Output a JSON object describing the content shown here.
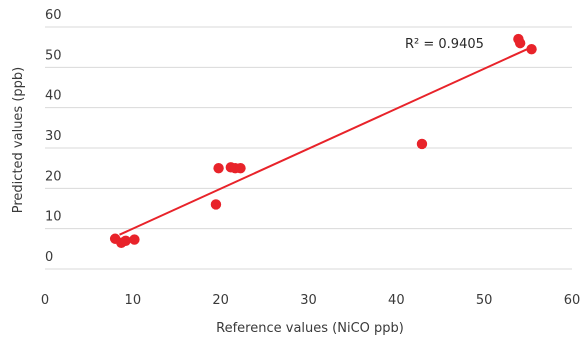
{
  "chart_data": {
    "type": "scatter",
    "title": "",
    "xlabel": "Reference values (NiCO ppb)",
    "ylabel": "Predicted values (ppb)",
    "xlim": [
      0,
      60
    ],
    "ylim": [
      0,
      60
    ],
    "x_ticks": [
      0,
      10,
      20,
      30,
      40,
      50,
      60
    ],
    "y_ticks": [
      0,
      10,
      20,
      30,
      40,
      50,
      60
    ],
    "grid": "horizontal",
    "legend": "none",
    "point_color": "#e8232a",
    "trendline_color": "#e8232a",
    "gridline_color": "#d9d9d9",
    "trendline": {
      "type": "linear",
      "x_range": [
        8.5,
        55
      ],
      "y_range": [
        8.5,
        54.5
      ]
    },
    "annotation": {
      "text": "R² = 0.9405"
    },
    "points": [
      {
        "x": 8.0,
        "y": 7.5
      },
      {
        "x": 8.7,
        "y": 6.5
      },
      {
        "x": 9.2,
        "y": 7.0
      },
      {
        "x": 10.2,
        "y": 7.3
      },
      {
        "x": 19.5,
        "y": 16.0
      },
      {
        "x": 19.8,
        "y": 25.0
      },
      {
        "x": 21.2,
        "y": 25.2
      },
      {
        "x": 21.7,
        "y": 25.0
      },
      {
        "x": 22.3,
        "y": 25.0
      },
      {
        "x": 43.0,
        "y": 31.0
      },
      {
        "x": 54.0,
        "y": 57.0
      },
      {
        "x": 54.2,
        "y": 56.0
      },
      {
        "x": 55.5,
        "y": 54.5
      }
    ]
  }
}
